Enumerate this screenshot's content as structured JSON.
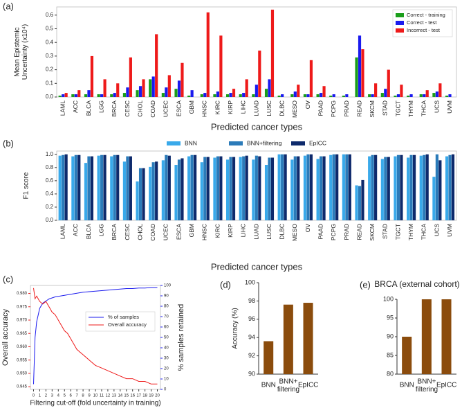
{
  "chart_data": [
    {
      "type": "bar",
      "panel": "(a)",
      "ylabel": "Mean Epistemic Uncertainty (x10⁴)",
      "xlabel": "Predicted cancer types",
      "legend": "upper right",
      "categories": [
        "LAML",
        "ACC",
        "BLCA",
        "LGG",
        "BRCA",
        "CESC",
        "CHOL",
        "COAD",
        "UCEC",
        "ESCA",
        "GBM",
        "HNSC",
        "KIRC",
        "KIRP",
        "LIHC",
        "LUAD",
        "LUSC",
        "DLBC",
        "MESO",
        "OV",
        "PAAD",
        "PCPG",
        "PRAD",
        "READ",
        "SKCM",
        "STAD",
        "TGCT",
        "THYM",
        "THCA",
        "UCS",
        "UVM"
      ],
      "series": [
        {
          "name": "Correct - training",
          "color": "#1a9e1a",
          "values": [
            0.01,
            0.02,
            0.02,
            0.02,
            0.02,
            0.03,
            0.05,
            0.13,
            0.03,
            0.06,
            0.01,
            0.02,
            0.02,
            0.02,
            0.02,
            0.02,
            0.06,
            0.01,
            0.02,
            0.02,
            0.02,
            0.01,
            0.01,
            0.29,
            0.02,
            0.03,
            0.01,
            0.01,
            0.02,
            0.03,
            0.01
          ]
        },
        {
          "name": "Correct - test",
          "color": "#1a1aee",
          "values": [
            0.02,
            0.02,
            0.05,
            0.02,
            0.03,
            0.07,
            0.08,
            0.15,
            0.07,
            0.12,
            0.05,
            0.03,
            0.04,
            0.03,
            0.03,
            0.09,
            0.13,
            0.02,
            0.04,
            0.02,
            0.03,
            0.02,
            0.02,
            0.45,
            0.02,
            0.06,
            0.02,
            0.02,
            0.02,
            0.04,
            0.02
          ]
        },
        {
          "name": "Incorrect -  test",
          "color": "#ee1a1a",
          "values": [
            0.03,
            0.05,
            0.3,
            0.13,
            0.1,
            0.29,
            0.13,
            0.46,
            0.16,
            0.25,
            0,
            0.62,
            0.45,
            0.06,
            0.13,
            0.34,
            0.64,
            0,
            0.09,
            0.27,
            0.08,
            0,
            0,
            0.35,
            0.1,
            0.2,
            0.09,
            0,
            0.05,
            0.1,
            0
          ]
        }
      ],
      "ylim": [
        0,
        0.66
      ],
      "yticks": [
        {
          "value": 0,
          "label": "0.0"
        },
        0.1,
        0.2,
        0.3,
        0.4,
        0.5,
        0.6
      ]
    },
    {
      "type": "bar",
      "panel": "(b)",
      "ylabel": "F1 score",
      "xlabel": "Predicted cancer types",
      "legend": "upper center",
      "categories": [
        "LAML",
        "ACC",
        "BLCA",
        "LGG",
        "BRCA",
        "CESC",
        "CHOL",
        "COAD",
        "UCEC",
        "ESCA",
        "GBM",
        "HNSC",
        "KIRC",
        "KIRP",
        "LIHC",
        "LUAD",
        "LUSC",
        "DLBC",
        "MESO",
        "OV",
        "PAAD",
        "PCPG",
        "PRAD",
        "READ",
        "SKCM",
        "STAD",
        "TGCT",
        "THYM",
        "THCA",
        "UCS",
        "UVM"
      ],
      "series": [
        {
          "name": "BNN",
          "color": "#39a9ea",
          "values": [
            0.98,
            0.97,
            0.87,
            0.98,
            0.97,
            0.89,
            0.59,
            0.81,
            0.91,
            0.84,
            0.97,
            0.88,
            0.95,
            0.92,
            0.96,
            0.92,
            0.84,
            1.0,
            0.92,
            0.98,
            0.93,
            0.99,
            1.0,
            0.53,
            0.97,
            0.93,
            0.97,
            0.95,
            0.98,
            0.66,
            0.97
          ]
        },
        {
          "name": "BNN+filtering",
          "color": "#2b7bb9",
          "values": [
            0.99,
            0.99,
            0.97,
            0.99,
            0.99,
            0.97,
            0.79,
            0.88,
            0.99,
            0.92,
            0.99,
            0.96,
            0.97,
            0.96,
            0.97,
            0.98,
            0.95,
            1.0,
            0.97,
            1.0,
            0.97,
            1.0,
            1.0,
            0.52,
            0.99,
            0.96,
            0.99,
            0.99,
            0.99,
            1.0,
            0.99
          ]
        },
        {
          "name": "EpICC",
          "color": "#0e2a6c",
          "values": [
            1.0,
            0.99,
            0.97,
            0.99,
            0.99,
            0.97,
            0.79,
            0.89,
            0.98,
            0.94,
            0.99,
            0.96,
            0.97,
            0.96,
            0.98,
            0.97,
            0.95,
            1.0,
            0.97,
            1.0,
            0.97,
            1.0,
            1.0,
            0.61,
            0.99,
            0.96,
            0.99,
            0.99,
            1.0,
            0.91,
            1.0
          ]
        }
      ],
      "ylim": [
        0,
        1.05
      ],
      "yticks": [
        {
          "value": 0,
          "label": "0.0"
        },
        0.2,
        0.4,
        0.6,
        0.8,
        {
          "value": 1,
          "label": "1.0"
        }
      ]
    },
    {
      "type": "line",
      "panel": "(c)",
      "ylabel": "Overall accuracy",
      "y2label": "% samples retained",
      "xlabel": "Filtering cut-off (fold uncertainty in training)",
      "legend": "center right",
      "x": [
        0,
        0.25,
        0.5,
        1,
        1.5,
        2,
        2.5,
        3,
        3.5,
        4,
        4.5,
        5,
        5.5,
        6,
        6.5,
        7,
        7.5,
        8,
        9,
        10,
        11,
        12,
        13,
        14,
        15,
        16,
        17,
        18,
        19,
        20
      ],
      "series": [
        {
          "name": "% of samples",
          "color": "#1a1aee",
          "axis": "y2",
          "values": [
            5,
            50,
            65,
            78,
            83,
            85,
            87,
            88,
            89,
            89.5,
            90,
            90.5,
            91,
            91.5,
            92,
            92.5,
            93,
            93.5,
            94,
            94.5,
            95,
            95.5,
            96,
            96.5,
            97,
            97,
            97.5,
            97.5,
            98,
            98
          ]
        },
        {
          "name": "Overall accuracy",
          "color": "#ee1a1a",
          "values": [
            0.982,
            0.978,
            0.979,
            0.977,
            0.976,
            0.977,
            0.975,
            0.973,
            0.972,
            0.97,
            0.968,
            0.966,
            0.965,
            0.963,
            0.961,
            0.959,
            0.958,
            0.957,
            0.955,
            0.953,
            0.952,
            0.951,
            0.95,
            0.949,
            0.948,
            0.948,
            0.947,
            0.947,
            0.946,
            0.946
          ]
        }
      ],
      "xlim": [
        -0.5,
        20.5
      ],
      "xticks": [
        0,
        1,
        2,
        3,
        4,
        5,
        6,
        7,
        8,
        9,
        10,
        11,
        12,
        13,
        14,
        15,
        16,
        17,
        18,
        19,
        20
      ],
      "ylim": [
        0.944,
        0.983
      ],
      "yticks": [
        0.945,
        {
          "value": 0.95,
          "label": "0.950"
        },
        0.955,
        {
          "value": 0.96,
          "label": "0.960"
        },
        0.965,
        {
          "value": 0.97,
          "label": "0.970"
        },
        0.975,
        {
          "value": 0.98,
          "label": "0.980"
        }
      ],
      "y2lim": [
        0,
        100
      ],
      "y2ticks": [
        0,
        10,
        20,
        30,
        40,
        50,
        60,
        70,
        80,
        90,
        100
      ]
    },
    {
      "type": "bar",
      "panel": "(d)",
      "ylabel": "Accuracy (%)",
      "categories": [
        "BNN",
        "BNN+ filtering",
        "EpICC"
      ],
      "values": [
        93.6,
        97.6,
        97.8
      ],
      "color": "#8b4c0d",
      "ylim": [
        90,
        100
      ],
      "yticks": [
        90,
        92,
        94,
        96,
        98,
        100
      ]
    },
    {
      "type": "bar",
      "panel": "(e)",
      "title": "BRCA (external cohort)",
      "categories": [
        "BNN",
        "BNN+ filtering",
        "EpICC"
      ],
      "values": [
        90,
        100,
        100
      ],
      "color": "#8b4c0d",
      "ylim": [
        80,
        100
      ],
      "yticks": [
        80,
        85,
        90,
        95,
        100
      ]
    }
  ]
}
